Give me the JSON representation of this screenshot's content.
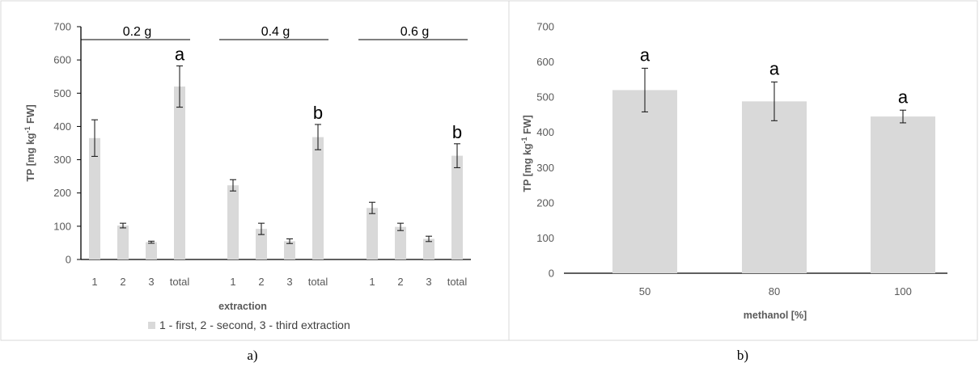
{
  "chart_data": [
    {
      "type": "bar",
      "panel_label": "a)",
      "ylabel": "TP [mg kg",
      "ylabel_sup": "-1",
      "ylabel_tail": " FW]",
      "xlabel": "extraction",
      "ylim": [
        0,
        700
      ],
      "yticks": [
        0,
        100,
        200,
        300,
        400,
        500,
        600,
        700
      ],
      "groups": [
        {
          "label": "0.2 g",
          "categories": [
            "1",
            "2",
            "3",
            "total"
          ],
          "values": [
            365,
            102,
            52,
            520
          ],
          "errors": [
            55,
            7,
            3,
            62
          ],
          "letters": [
            "",
            "",
            "",
            "a"
          ]
        },
        {
          "label": "0.4 g",
          "categories": [
            "1",
            "2",
            "3",
            "total"
          ],
          "values": [
            223,
            92,
            55,
            368
          ],
          "errors": [
            17,
            17,
            7,
            38
          ],
          "letters": [
            "",
            "",
            "",
            "b"
          ]
        },
        {
          "label": "0.6 g",
          "categories": [
            "1",
            "2",
            "3",
            "total"
          ],
          "values": [
            155,
            98,
            62,
            312
          ],
          "errors": [
            17,
            11,
            8,
            36
          ],
          "letters": [
            "",
            "",
            "",
            "b"
          ]
        }
      ],
      "legend": {
        "entry": "1 - first, 2 - second, 3 - third extraction",
        "color": "#d9d9d9",
        "position": "bottom"
      }
    },
    {
      "type": "bar",
      "panel_label": "b)",
      "ylabel": "TP [mg kg",
      "ylabel_sup": "-1",
      "ylabel_tail": " FW]",
      "xlabel": "methanol [%]",
      "ylim": [
        0,
        700
      ],
      "yticks": [
        0,
        100,
        200,
        300,
        400,
        500,
        600,
        700
      ],
      "categories": [
        "50",
        "80",
        "100"
      ],
      "values": [
        520,
        488,
        445
      ],
      "errors": [
        62,
        55,
        18
      ],
      "letters": [
        "a",
        "a",
        "a"
      ]
    }
  ]
}
